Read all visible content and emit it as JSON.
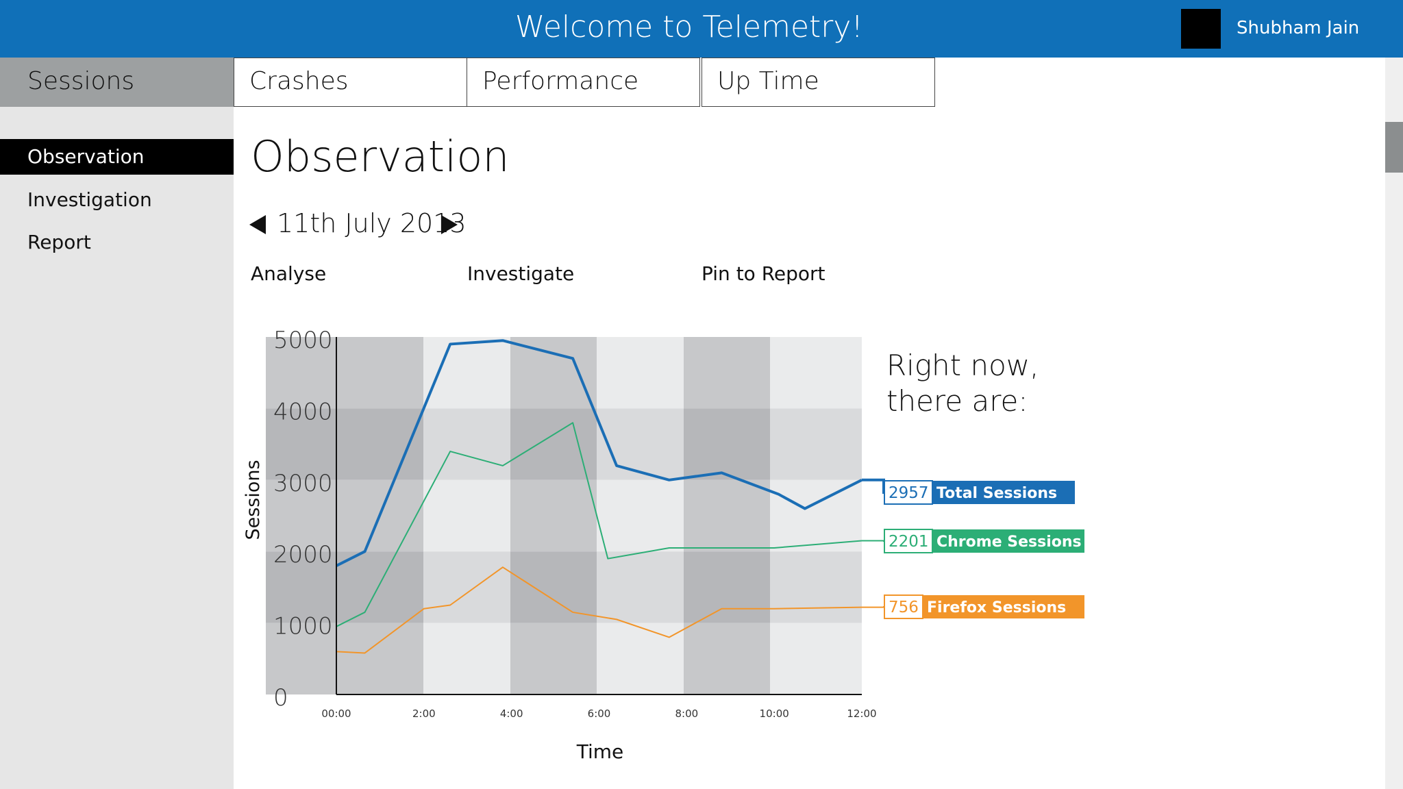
{
  "header": {
    "title": "Welcome to Telemetry!",
    "user_name": "Shubham Jain"
  },
  "colors": {
    "header": "#1070b8",
    "total": "#1b6eb5",
    "chrome": "#2cae76",
    "firefox": "#f2952a"
  },
  "tabs": [
    {
      "label": "Sessions",
      "active": true
    },
    {
      "label": "Crashes"
    },
    {
      "label": "Performance"
    },
    {
      "label": "Up Time"
    }
  ],
  "sidebar": {
    "items": [
      {
        "label": "Observation",
        "active": true
      },
      {
        "label": "Investigation"
      },
      {
        "label": "Report"
      }
    ]
  },
  "page": {
    "title": "Observation",
    "date": "11th July 2013"
  },
  "actions": {
    "analyse": "Analyse",
    "investigate": "Investigate",
    "pin": "Pin to Report"
  },
  "chart_data": {
    "type": "line",
    "xlabel": "Time",
    "ylabel": "Sessions",
    "ylim": [
      0,
      5000
    ],
    "y_ticks": [
      "0",
      "1000",
      "2000",
      "3000",
      "4000",
      "5000"
    ],
    "x_ticks": [
      "00:00",
      "2:00",
      "4:00",
      "6:00",
      "8:00",
      "10:00",
      "12:00"
    ],
    "grid": true,
    "series": [
      {
        "name": "Total Sessions",
        "current": "2957",
        "color": "#1b6eb5",
        "x": [
          0,
          0.65,
          2.6,
          3.8,
          5.4,
          6.4,
          7.6,
          8.8,
          10.1,
          10.7,
          12
        ],
        "y": [
          1800,
          2000,
          4900,
          4950,
          4700,
          3200,
          3000,
          3100,
          2800,
          2600,
          3000
        ]
      },
      {
        "name": "Chrome Sessions",
        "current": "2201",
        "color": "#2cae76",
        "x": [
          0,
          0.65,
          2.6,
          3.8,
          5.4,
          6.2,
          7.6,
          10,
          12
        ],
        "y": [
          950,
          1150,
          3400,
          3200,
          3800,
          1900,
          2050,
          2050,
          2150
        ]
      },
      {
        "name": "Firefox Sessions",
        "current": "756",
        "color": "#f2952a",
        "x": [
          0,
          0.65,
          2,
          2.6,
          3.8,
          5.4,
          6.4,
          7.6,
          8.8,
          10,
          12
        ],
        "y": [
          600,
          580,
          1200,
          1250,
          1780,
          1150,
          1050,
          800,
          1200,
          1200,
          1220
        ]
      }
    ],
    "annotation": {
      "line1": "Right now,",
      "line2": "there are:"
    }
  }
}
